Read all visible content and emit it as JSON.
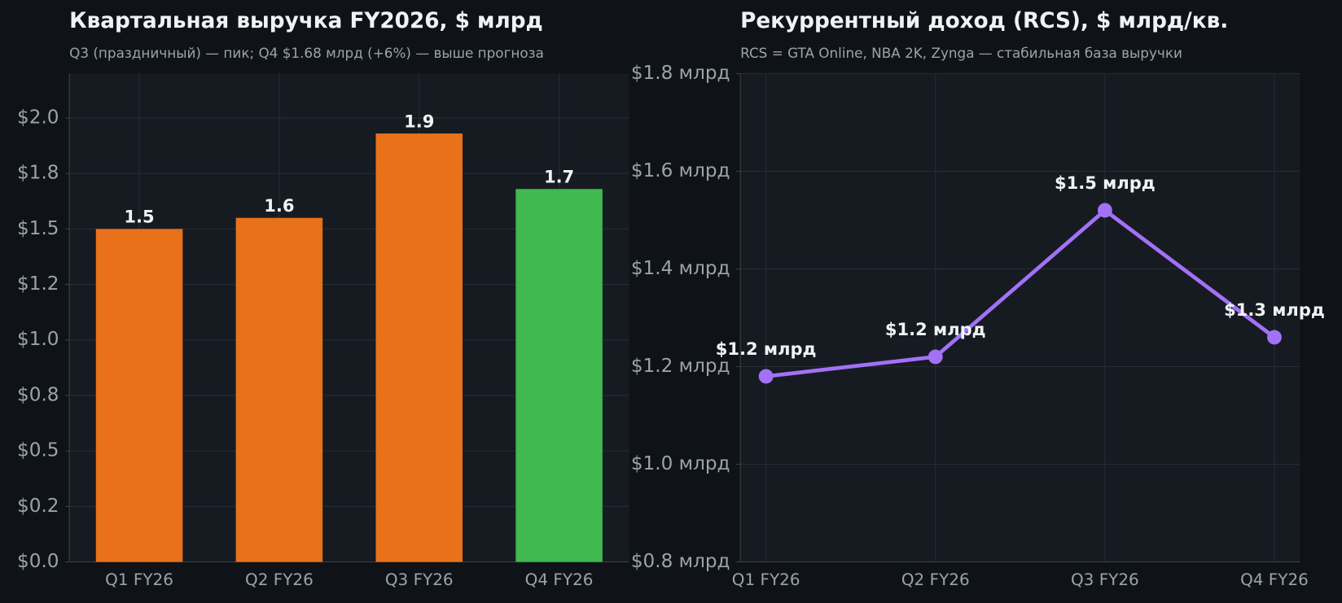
{
  "chart_data": [
    {
      "type": "bar",
      "title": "Квартальная выручка FY2026, $ млрд",
      "subtitle": "Q3 (праздничный) — пик; Q4 $1.68 млрд (+6%) — выше прогноза",
      "categories": [
        "Q1 FY26",
        "Q2 FY26",
        "Q3 FY26",
        "Q4 FY26"
      ],
      "values": [
        1.5,
        1.55,
        1.93,
        1.68
      ],
      "value_labels": [
        "1.5",
        "1.6",
        "1.9",
        "1.7"
      ],
      "colors": [
        "#e8711a",
        "#e8711a",
        "#e8711a",
        "#3fb950"
      ],
      "ylim": [
        0,
        2.2
      ],
      "yticks": [
        {
          "value": 0,
          "label": "$0.0"
        },
        {
          "value": 0.25,
          "label": "$0.2"
        },
        {
          "value": 0.5,
          "label": "$0.5"
        },
        {
          "value": 0.75,
          "label": "$0.8"
        },
        {
          "value": 1.0,
          "label": "$1.0"
        },
        {
          "value": 1.25,
          "label": "$1.2"
        },
        {
          "value": 1.5,
          "label": "$1.5"
        },
        {
          "value": 1.75,
          "label": "$1.8"
        },
        {
          "value": 2.0,
          "label": "$2.0"
        }
      ],
      "grid": true
    },
    {
      "type": "line",
      "title": "Рекуррентный доход (RCS), $ млрд/кв.",
      "subtitle": "RCS = GTA Online, NBA 2K, Zynga — стабильная база выручки",
      "categories": [
        "Q1 FY26",
        "Q2 FY26",
        "Q3 FY26",
        "Q4 FY26"
      ],
      "values": [
        1.18,
        1.22,
        1.52,
        1.26
      ],
      "value_labels": [
        "$1.2 млрд",
        "$1.2 млрд",
        "$1.5 млрд",
        "$1.3 млрд"
      ],
      "color": "#a371f7",
      "ylim": [
        0.8,
        1.8
      ],
      "yticks": [
        {
          "value": 0.8,
          "label": "$0.8 млрд"
        },
        {
          "value": 1.0,
          "label": "$1.0 млрд"
        },
        {
          "value": 1.2,
          "label": "$1.2 млрд"
        },
        {
          "value": 1.4,
          "label": "$1.4 млрд"
        },
        {
          "value": 1.6,
          "label": "$1.6 млрд"
        },
        {
          "value": 1.8,
          "label": "$1.8 млрд"
        }
      ],
      "grid": true
    }
  ]
}
